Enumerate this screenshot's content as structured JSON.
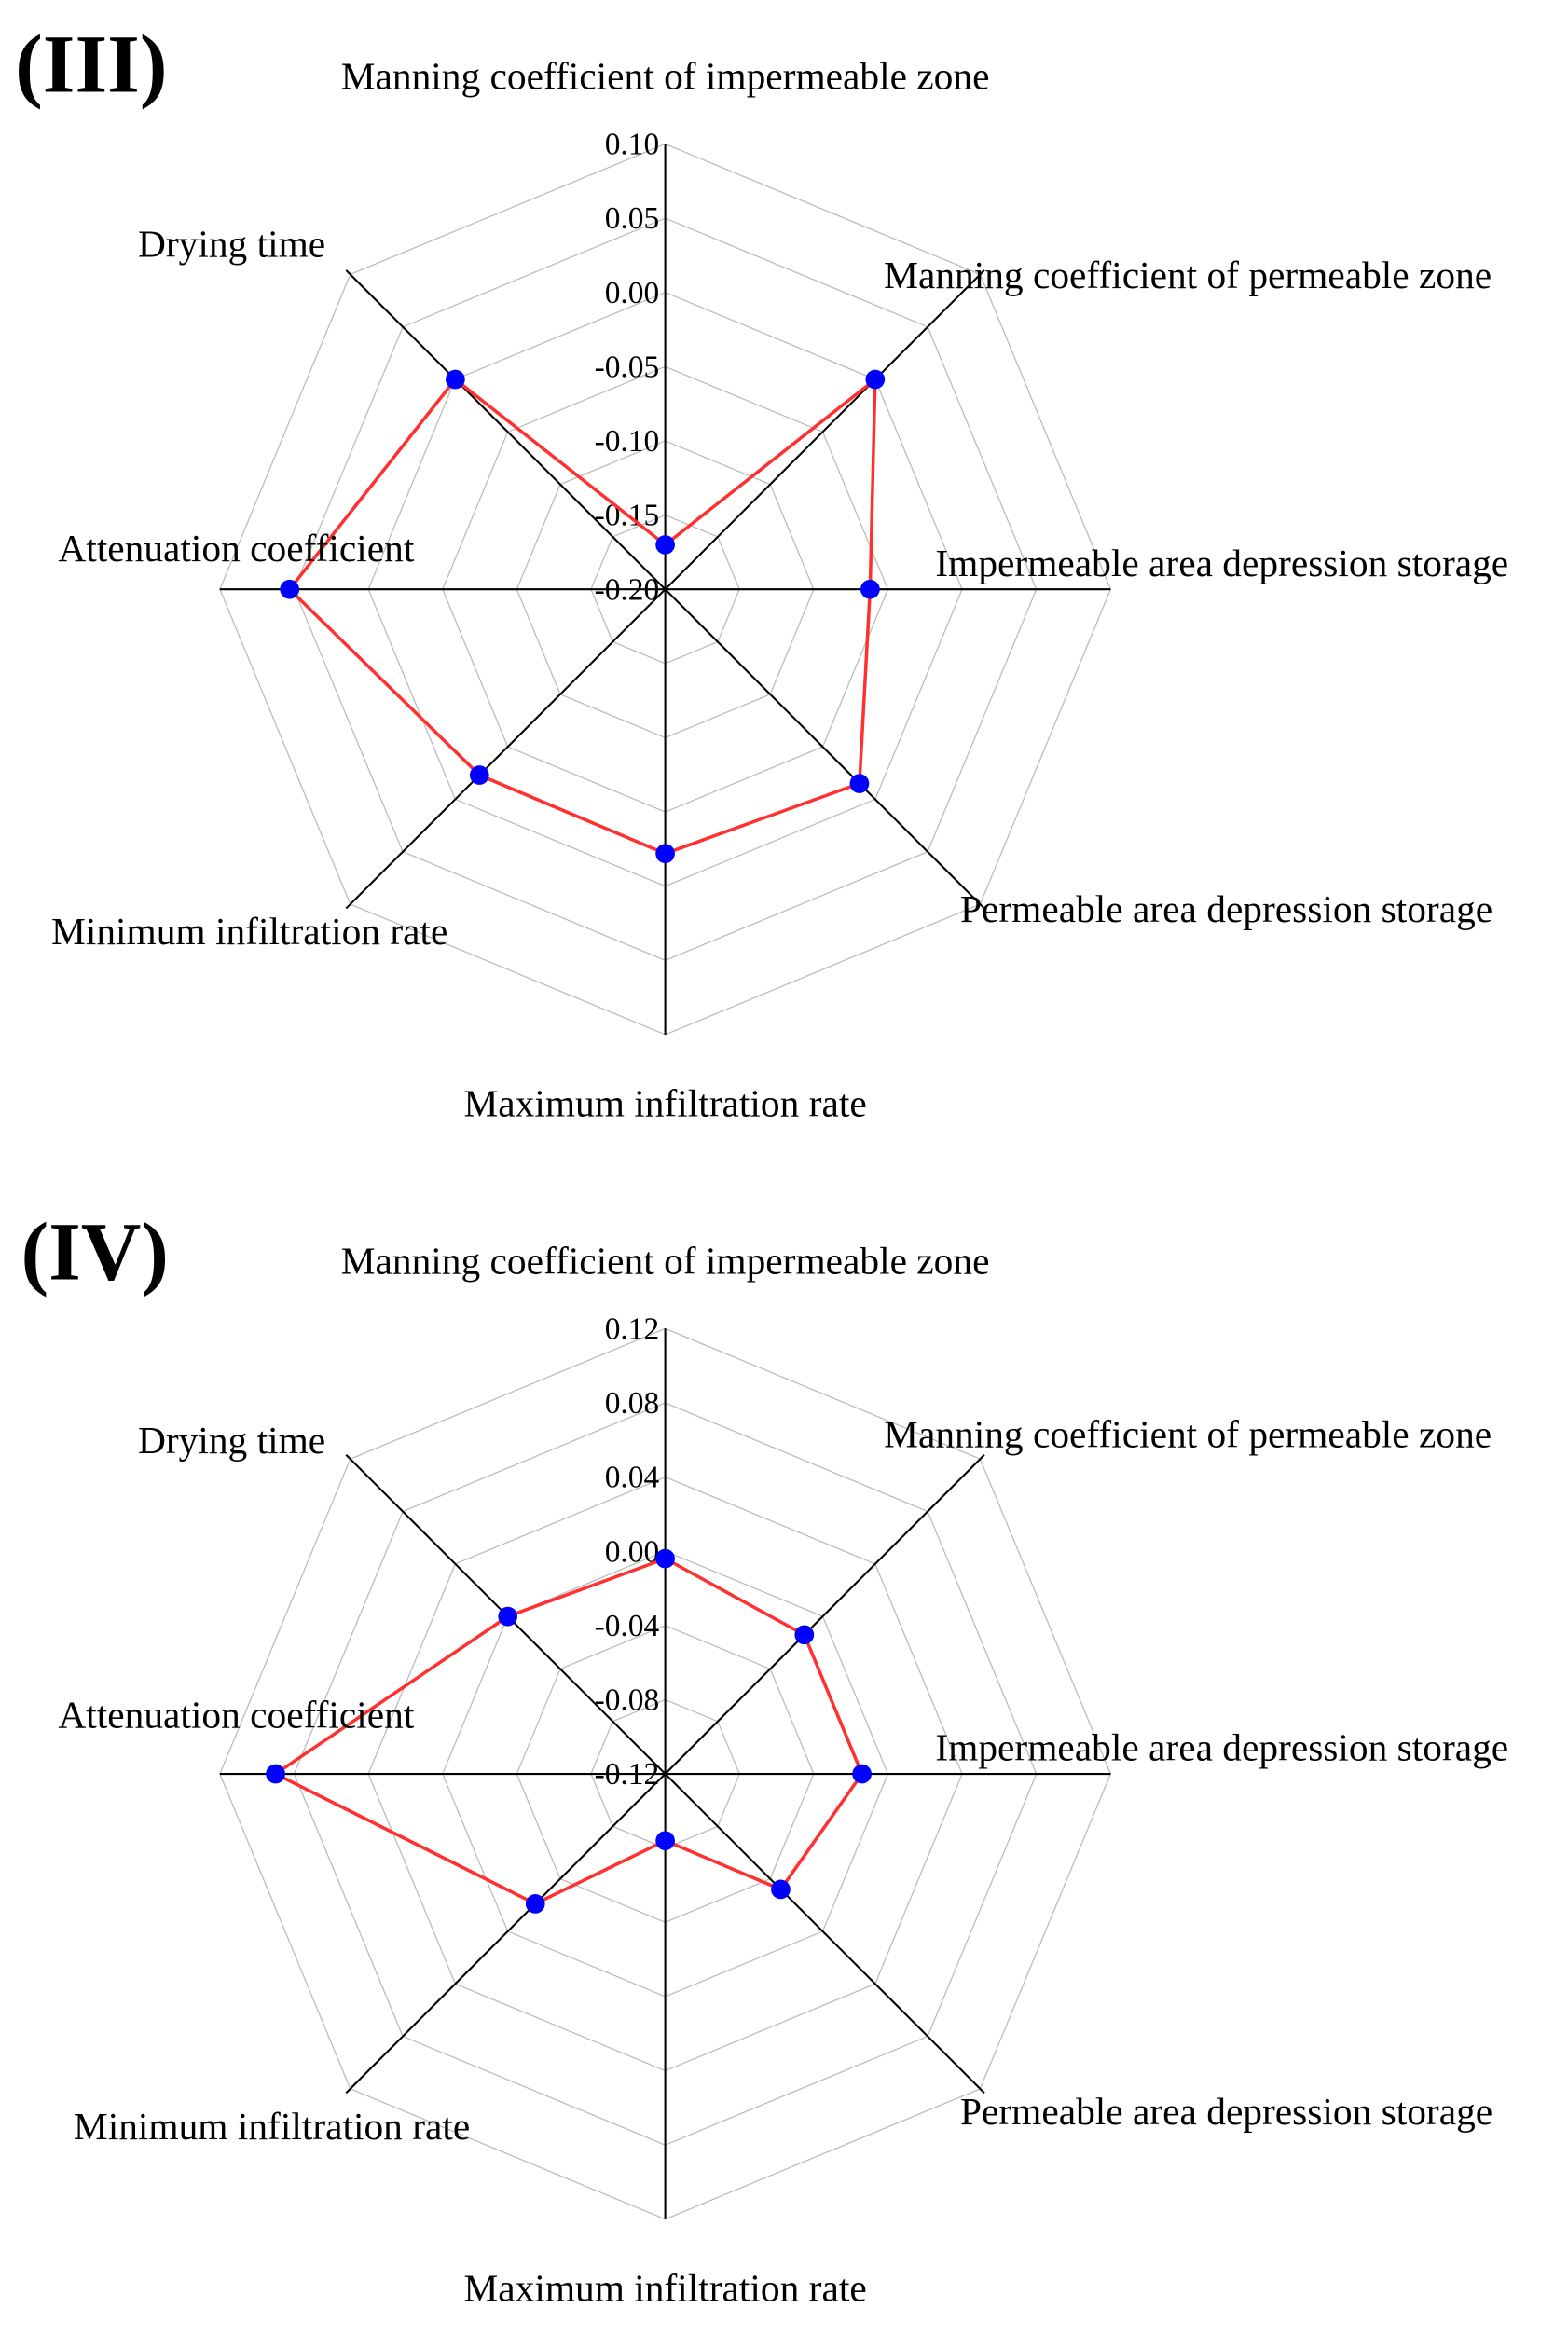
{
  "chart_data": [
    {
      "type": "radar",
      "title": "(III)",
      "axes": [
        "Manning coefficient of impermeable zone",
        "Manning coefficient of permeable zone",
        "Impermeable area depression storage",
        "Permeable area depression storage",
        "Maximum infiltration rate",
        "Minimum infiltration rate",
        "Attenuation coefficient",
        "Drying time"
      ],
      "range": [
        -0.2,
        0.1
      ],
      "ticks": [
        "-0.20",
        "-0.15",
        "-0.10",
        "-0.05",
        "0.00",
        "0.05",
        "0.10"
      ],
      "values": [
        -0.17,
        0.0,
        -0.062,
        -0.015,
        -0.022,
        -0.023,
        0.053,
        0.0
      ],
      "colors": {
        "line": "#ff3030",
        "marker": "#0000ff",
        "grid": "#bbbbbb",
        "axis": "#000000"
      }
    },
    {
      "type": "radar",
      "title": "(IV)",
      "axes": [
        "Manning coefficient of impermeable zone",
        "Manning coefficient of permeable zone",
        "Impermeable area depression storage",
        "Permeable area depression storage",
        "Maximum infiltration rate",
        "Minimum infiltration rate",
        "Attenuation coefficient",
        "Drying time"
      ],
      "range": [
        -0.12,
        0.12
      ],
      "ticks": [
        "-0.12",
        "-0.08",
        "-0.04",
        "0.00",
        "0.04",
        "0.08",
        "0.12"
      ],
      "values": [
        -0.004,
        -0.014,
        -0.014,
        -0.032,
        -0.084,
        -0.021,
        0.09,
        0.0
      ],
      "colors": {
        "line": "#ff3030",
        "marker": "#0000ff",
        "grid": "#bbbbbb",
        "axis": "#000000"
      }
    }
  ]
}
